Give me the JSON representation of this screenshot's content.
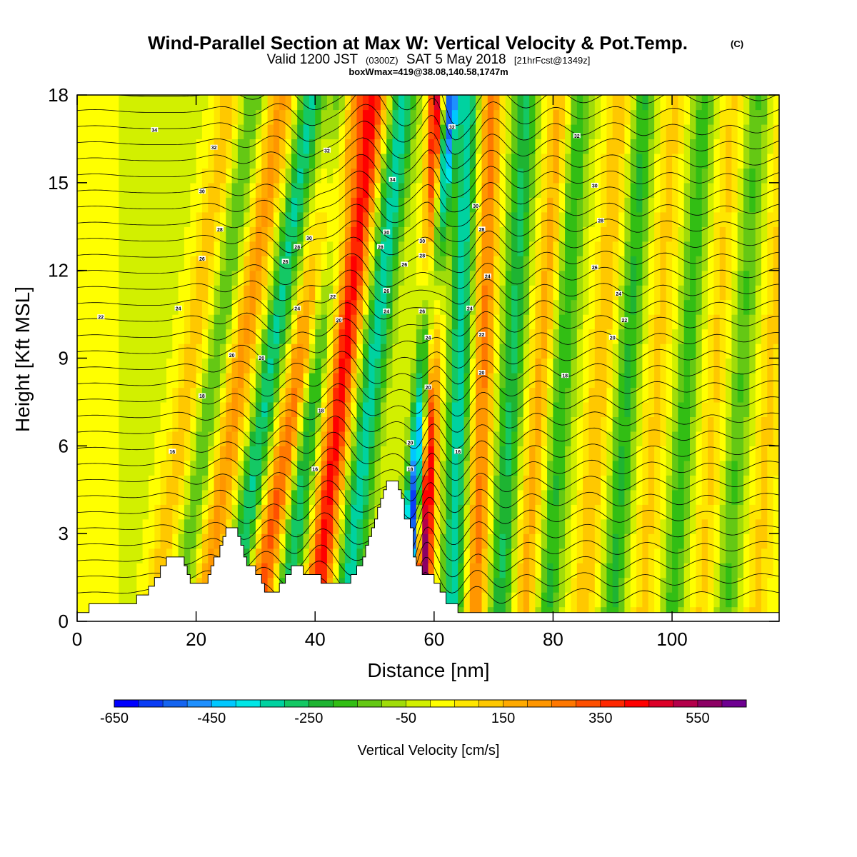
{
  "figure": {
    "title": "Wind-Parallel Section at Max W: Vertical Velocity & Pot.Temp.",
    "title_mark": "(C)",
    "subtitle_valid": "Valid 1200 JST",
    "subtitle_zulu": "(0300Z)",
    "subtitle_date": "SAT 5 May 2018",
    "subtitle_fcst": "[21hrFcst@1349z]",
    "subtitle2": "boxWmax=419@38.08,140.58,1747m"
  },
  "chart_data": {
    "type": "heatmap",
    "xlabel": "Distance [nm]",
    "ylabel": "Height [Kft MSL]",
    "xlim": [
      0,
      118
    ],
    "ylim": [
      0,
      18
    ],
    "x_ticks": [
      0,
      20,
      40,
      60,
      80,
      100
    ],
    "y_ticks": [
      0,
      3,
      6,
      9,
      12,
      15,
      18
    ],
    "grid": false,
    "colorbar": {
      "title": "Vertical Velocity [cm/s]",
      "ticks": [
        -650,
        -450,
        -250,
        -50,
        150,
        350,
        550
      ],
      "min": -650,
      "max": 650,
      "step": 50,
      "colors": [
        "#0000ff",
        "#0a3cf5",
        "#1464f0",
        "#1e90ff",
        "#00c8ff",
        "#00e6e6",
        "#00d2a0",
        "#14c864",
        "#1eb432",
        "#32be14",
        "#64c814",
        "#a0dc0a",
        "#d2f000",
        "#ffff00",
        "#ffe600",
        "#ffc800",
        "#ffaa00",
        "#ff9600",
        "#ff7800",
        "#ff5000",
        "#ff2800",
        "#ff0000",
        "#dc0028",
        "#b4004b",
        "#8c0064",
        "#6e0091"
      ]
    },
    "fields": {
      "vertical_velocity_cm_s": {
        "description_units": "cm/s",
        "bands": [
          {
            "x": 3,
            "amp": 60,
            "width": 3.0,
            "tilt": 0.0
          },
          {
            "x": 13,
            "amp": 140,
            "width": 2.4,
            "tilt": 0.7
          },
          {
            "x": 17,
            "amp": -150,
            "width": 2.0,
            "tilt": 0.7
          },
          {
            "x": 21,
            "amp": 220,
            "width": 2.4,
            "tilt": 0.75
          },
          {
            "x": 26,
            "amp": -300,
            "width": 2.0,
            "tilt": 0.75
          },
          {
            "x": 30,
            "amp": 330,
            "width": 2.4,
            "tilt": 0.9
          },
          {
            "x": 35,
            "amp": -300,
            "width": 2.0,
            "tilt": 0.55
          },
          {
            "x": 40,
            "amp": 430,
            "width": 2.2,
            "tilt": 0.55
          },
          {
            "x": 45,
            "amp": -320,
            "width": 2.2,
            "tilt": 0.55
          },
          {
            "x": 55,
            "amp": -650,
            "width": 1.5,
            "tilt": 0.42
          },
          {
            "x": 58,
            "amp": 620,
            "width": 1.5,
            "tilt": 0.15
          },
          {
            "x": 63,
            "amp": -330,
            "width": 1.8,
            "tilt": 0.15
          },
          {
            "x": 67,
            "amp": 270,
            "width": 1.8,
            "tilt": 0.15
          },
          {
            "x": 71,
            "amp": -250,
            "width": 2.0,
            "tilt": 0.25
          },
          {
            "x": 75,
            "amp": 180,
            "width": 2.2,
            "tilt": 0.35
          },
          {
            "x": 79,
            "amp": -200,
            "width": 2.0,
            "tilt": 0.3
          },
          {
            "x": 85,
            "amp": 150,
            "width": 2.2,
            "tilt": 0.35
          },
          {
            "x": 90,
            "amp": -200,
            "width": 2.0,
            "tilt": 0.3
          },
          {
            "x": 95,
            "amp": 120,
            "width": 2.4,
            "tilt": 0.3
          },
          {
            "x": 100,
            "amp": -170,
            "width": 2.0,
            "tilt": 0.3
          },
          {
            "x": 105,
            "amp": 120,
            "width": 2.4,
            "tilt": 0.3
          },
          {
            "x": 109,
            "amp": -150,
            "width": 2.2,
            "tilt": 0.3
          },
          {
            "x": 114,
            "amp": 120,
            "width": 2.4,
            "tilt": 0.3
          }
        ]
      },
      "potential_temperature_C": {
        "contour_count": 32,
        "labels": [
          {
            "x": 13,
            "y": 16.8,
            "text": "34"
          },
          {
            "x": 23,
            "y": 16.2,
            "text": "32"
          },
          {
            "x": 21,
            "y": 14.7,
            "text": "30"
          },
          {
            "x": 24,
            "y": 13.4,
            "text": "28"
          },
          {
            "x": 21,
            "y": 12.4,
            "text": "26"
          },
          {
            "x": 17,
            "y": 10.7,
            "text": "24"
          },
          {
            "x": 4,
            "y": 10.4,
            "text": "22"
          },
          {
            "x": 26,
            "y": 9.1,
            "text": "20"
          },
          {
            "x": 21,
            "y": 7.7,
            "text": "18"
          },
          {
            "x": 16,
            "y": 5.8,
            "text": "16"
          },
          {
            "x": 42,
            "y": 16.1,
            "text": "32"
          },
          {
            "x": 39,
            "y": 13.1,
            "text": "30"
          },
          {
            "x": 37,
            "y": 12.8,
            "text": "28"
          },
          {
            "x": 35,
            "y": 12.3,
            "text": "26"
          },
          {
            "x": 37,
            "y": 10.7,
            "text": "24"
          },
          {
            "x": 43,
            "y": 11.1,
            "text": "22"
          },
          {
            "x": 44,
            "y": 10.3,
            "text": "20"
          },
          {
            "x": 31,
            "y": 9.0,
            "text": "20"
          },
          {
            "x": 41,
            "y": 7.2,
            "text": "18"
          },
          {
            "x": 40,
            "y": 5.2,
            "text": "16"
          },
          {
            "x": 53,
            "y": 15.1,
            "text": "34"
          },
          {
            "x": 52,
            "y": 13.3,
            "text": "30"
          },
          {
            "x": 51,
            "y": 12.8,
            "text": "28"
          },
          {
            "x": 55,
            "y": 12.2,
            "text": "26"
          },
          {
            "x": 52,
            "y": 11.3,
            "text": "26"
          },
          {
            "x": 52,
            "y": 10.6,
            "text": "24"
          },
          {
            "x": 58,
            "y": 13.0,
            "text": "30"
          },
          {
            "x": 58,
            "y": 12.5,
            "text": "28"
          },
          {
            "x": 58,
            "y": 10.6,
            "text": "26"
          },
          {
            "x": 59,
            "y": 9.7,
            "text": "24"
          },
          {
            "x": 59,
            "y": 8.0,
            "text": "20"
          },
          {
            "x": 56,
            "y": 6.1,
            "text": "20"
          },
          {
            "x": 56,
            "y": 5.2,
            "text": "18"
          },
          {
            "x": 64,
            "y": 5.8,
            "text": "16"
          },
          {
            "x": 63,
            "y": 16.9,
            "text": "32"
          },
          {
            "x": 67,
            "y": 14.2,
            "text": "30"
          },
          {
            "x": 68,
            "y": 13.4,
            "text": "28"
          },
          {
            "x": 69,
            "y": 11.8,
            "text": "24"
          },
          {
            "x": 66,
            "y": 10.7,
            "text": "24"
          },
          {
            "x": 68,
            "y": 9.8,
            "text": "22"
          },
          {
            "x": 68,
            "y": 8.5,
            "text": "20"
          },
          {
            "x": 84,
            "y": 16.6,
            "text": "32"
          },
          {
            "x": 87,
            "y": 14.9,
            "text": "30"
          },
          {
            "x": 88,
            "y": 13.7,
            "text": "28"
          },
          {
            "x": 87,
            "y": 12.1,
            "text": "26"
          },
          {
            "x": 91,
            "y": 11.2,
            "text": "24"
          },
          {
            "x": 92,
            "y": 10.3,
            "text": "22"
          },
          {
            "x": 90,
            "y": 9.7,
            "text": "20"
          },
          {
            "x": 82,
            "y": 8.4,
            "text": "18"
          }
        ]
      }
    },
    "terrain_kft": [
      [
        0,
        0.3
      ],
      [
        2,
        0.3
      ],
      [
        2,
        0.6
      ],
      [
        10,
        0.6
      ],
      [
        10,
        0.9
      ],
      [
        12,
        0.9
      ],
      [
        12,
        1.2
      ],
      [
        13,
        1.2
      ],
      [
        13,
        1.5
      ],
      [
        14,
        1.5
      ],
      [
        14,
        1.9
      ],
      [
        15,
        1.9
      ],
      [
        15,
        2.2
      ],
      [
        18,
        2.2
      ],
      [
        18,
        1.9
      ],
      [
        18.5,
        1.9
      ],
      [
        18.5,
        1.6
      ],
      [
        19,
        1.6
      ],
      [
        19,
        1.3
      ],
      [
        22,
        1.3
      ],
      [
        22,
        1.6
      ],
      [
        22.5,
        1.6
      ],
      [
        22.5,
        1.9
      ],
      [
        23,
        1.9
      ],
      [
        23,
        2.2
      ],
      [
        24,
        2.2
      ],
      [
        24,
        2.6
      ],
      [
        24.5,
        2.6
      ],
      [
        24.5,
        2.9
      ],
      [
        25,
        2.9
      ],
      [
        25,
        3.2
      ],
      [
        27,
        3.2
      ],
      [
        27,
        2.9
      ],
      [
        27.5,
        2.9
      ],
      [
        27.5,
        2.6
      ],
      [
        28,
        2.6
      ],
      [
        28,
        2.2
      ],
      [
        28.5,
        2.2
      ],
      [
        28.5,
        1.9
      ],
      [
        30,
        1.9
      ],
      [
        30,
        1.6
      ],
      [
        31,
        1.6
      ],
      [
        31,
        1.3
      ],
      [
        31.5,
        1.3
      ],
      [
        31.5,
        1.0
      ],
      [
        34,
        1.0
      ],
      [
        34,
        1.3
      ],
      [
        35,
        1.3
      ],
      [
        35,
        1.6
      ],
      [
        36,
        1.6
      ],
      [
        36,
        1.9
      ],
      [
        38,
        1.9
      ],
      [
        38,
        1.6
      ],
      [
        41,
        1.6
      ],
      [
        41,
        1.3
      ],
      [
        46,
        1.3
      ],
      [
        46,
        1.6
      ],
      [
        47,
        1.6
      ],
      [
        47,
        1.9
      ],
      [
        48,
        1.9
      ],
      [
        48,
        2.2
      ],
      [
        48.5,
        2.2
      ],
      [
        48.5,
        2.6
      ],
      [
        49,
        2.6
      ],
      [
        49,
        2.9
      ],
      [
        49.5,
        2.9
      ],
      [
        49.5,
        3.2
      ],
      [
        50,
        3.2
      ],
      [
        50,
        3.5
      ],
      [
        50.5,
        3.5
      ],
      [
        50.5,
        3.9
      ],
      [
        51,
        3.9
      ],
      [
        51,
        4.2
      ],
      [
        51.5,
        4.2
      ],
      [
        51.5,
        4.5
      ],
      [
        52,
        4.5
      ],
      [
        52,
        4.8
      ],
      [
        54,
        4.8
      ],
      [
        54,
        4.5
      ],
      [
        54.5,
        4.5
      ],
      [
        54.5,
        4.2
      ],
      [
        55,
        4.2
      ],
      [
        55,
        3.5
      ],
      [
        56,
        3.5
      ],
      [
        56,
        3.2
      ],
      [
        56.5,
        3.2
      ],
      [
        56.5,
        2.2
      ],
      [
        57,
        2.2
      ],
      [
        57,
        1.9
      ],
      [
        58,
        1.9
      ],
      [
        58,
        1.6
      ],
      [
        60,
        1.6
      ],
      [
        60,
        1.3
      ],
      [
        61,
        1.3
      ],
      [
        61,
        1.0
      ],
      [
        62,
        1.0
      ],
      [
        62,
        0.6
      ],
      [
        64,
        0.6
      ],
      [
        64,
        0.3
      ],
      [
        118,
        0.3
      ]
    ]
  }
}
